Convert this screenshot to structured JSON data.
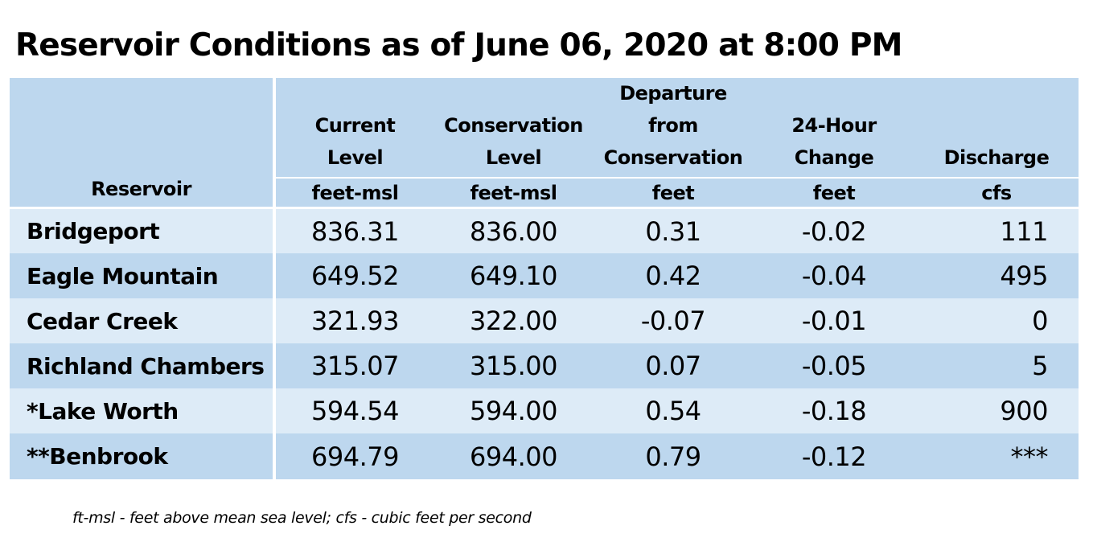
{
  "title": "Reservoir Conditions as of June 06, 2020 at 8:00 PM",
  "columns": [
    {
      "label_lines": [
        ""
      ],
      "unit": "",
      "label": "Reservoir"
    },
    {
      "label_lines": [
        "Current",
        "Level"
      ],
      "unit": "feet-msl"
    },
    {
      "label_lines": [
        "Conservation",
        "Level"
      ],
      "unit": "feet-msl"
    },
    {
      "label_lines": [
        "Departure",
        "from",
        "Conservation"
      ],
      "unit": "feet"
    },
    {
      "label_lines": [
        "24-Hour",
        "Change"
      ],
      "unit": "feet"
    },
    {
      "label_lines": [
        "Discharge"
      ],
      "unit": "cfs"
    }
  ],
  "rows": [
    {
      "name": "Bridgeport",
      "current": "836.31",
      "conservation": "836.00",
      "departure": "0.31",
      "change": "-0.02",
      "discharge": "111"
    },
    {
      "name": "Eagle Mountain",
      "current": "649.52",
      "conservation": "649.10",
      "departure": "0.42",
      "change": "-0.04",
      "discharge": "495"
    },
    {
      "name": "Cedar Creek",
      "current": "321.93",
      "conservation": "322.00",
      "departure": "-0.07",
      "change": "-0.01",
      "discharge": "0"
    },
    {
      "name": "Richland Chambers",
      "current": "315.07",
      "conservation": "315.00",
      "departure": "0.07",
      "change": "-0.05",
      "discharge": "5"
    },
    {
      "name": "*Lake Worth",
      "current": "594.54",
      "conservation": "594.00",
      "departure": "0.54",
      "change": "-0.18",
      "discharge": "900"
    },
    {
      "name": "**Benbrook",
      "current": "694.79",
      "conservation": "694.00",
      "departure": "0.79",
      "change": "-0.12",
      "discharge": "***"
    }
  ],
  "footnote": "ft-msl - feet above mean sea level; cfs - cubic feet per second",
  "colors": {
    "header_band": "#bdd7ee",
    "row_light": "#ddebf7",
    "row_dark": "#bdd7ee"
  }
}
